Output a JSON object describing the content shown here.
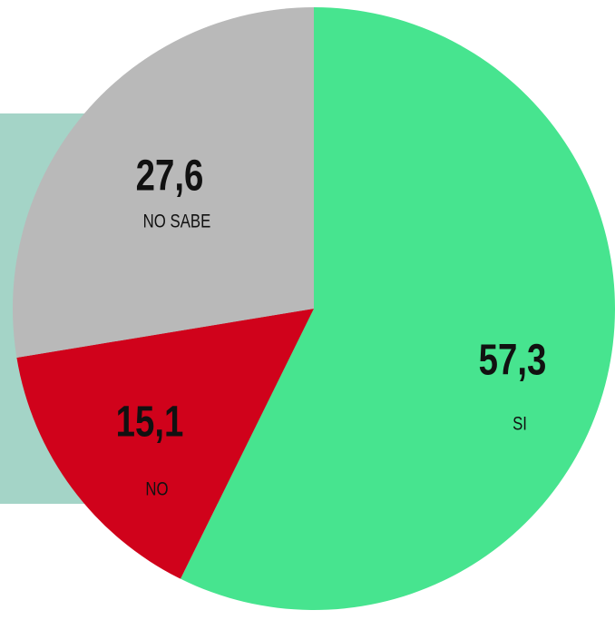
{
  "chart_data": {
    "type": "pie",
    "categories": [
      "SI",
      "NO",
      "NO SABE"
    ],
    "values": [
      57.3,
      15.1,
      27.6
    ],
    "value_labels": [
      "57,3",
      "15,1",
      "27,6"
    ],
    "colors": [
      "#47e48f",
      "#d0021b",
      "#b9b9b9"
    ]
  }
}
